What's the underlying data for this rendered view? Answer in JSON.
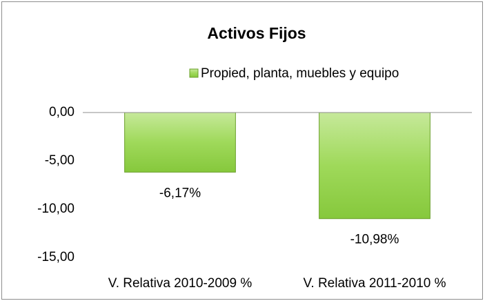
{
  "chart_data": {
    "type": "bar",
    "title": "Activos Fijos",
    "categories": [
      "V. Relativa 2010-2009  %",
      "V. Relativa 2011-2010  %"
    ],
    "series": [
      {
        "name": "Propied, planta, muebles y equipo",
        "color": "#92d050",
        "values": [
          -6.17,
          -10.98
        ],
        "value_labels": [
          "-6,17%",
          "-10,98%"
        ]
      }
    ],
    "ylim": [
      -15,
      0
    ],
    "yticks": [
      {
        "value": 0,
        "label": "0,00"
      },
      {
        "value": -5,
        "label": "-5,00"
      },
      {
        "value": -10,
        "label": "-10,00"
      },
      {
        "value": -15,
        "label": "-15,00"
      }
    ],
    "legend": "top",
    "grid": false
  }
}
